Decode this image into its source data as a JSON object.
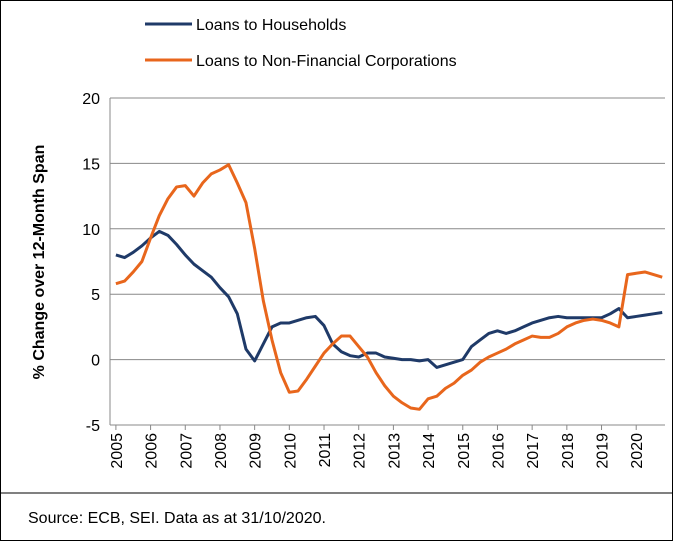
{
  "chart_data": {
    "type": "line",
    "y_label": "% Change over 12-Month Span",
    "source": "Source: ECB, SEI. Data as at 31/10/2020.",
    "x": [
      2005,
      2005.25,
      2005.5,
      2005.75,
      2006,
      2006.25,
      2006.5,
      2006.75,
      2007,
      2007.25,
      2007.5,
      2007.75,
      2008,
      2008.25,
      2008.5,
      2008.75,
      2009,
      2009.25,
      2009.5,
      2009.75,
      2010,
      2010.25,
      2010.5,
      2010.75,
      2011,
      2011.25,
      2011.5,
      2011.75,
      2012,
      2012.25,
      2012.5,
      2012.75,
      2013,
      2013.25,
      2013.5,
      2013.75,
      2014,
      2014.25,
      2014.5,
      2014.75,
      2015,
      2015.25,
      2015.5,
      2015.75,
      2016,
      2016.25,
      2016.5,
      2016.75,
      2017,
      2017.25,
      2017.5,
      2017.75,
      2018,
      2018.25,
      2018.5,
      2018.75,
      2019,
      2019.25,
      2019.5,
      2019.75,
      2020,
      2020.25,
      2020.5,
      2020.75
    ],
    "series": [
      {
        "name": "Loans to Households",
        "color": "#1f3a68",
        "values": [
          8.0,
          7.8,
          8.2,
          8.7,
          9.3,
          9.8,
          9.5,
          8.8,
          8.0,
          7.3,
          6.8,
          6.3,
          5.5,
          4.8,
          3.5,
          0.8,
          -0.1,
          1.2,
          2.5,
          2.8,
          2.8,
          3.0,
          3.2,
          3.3,
          2.6,
          1.2,
          0.6,
          0.3,
          0.2,
          0.5,
          0.5,
          0.2,
          0.1,
          0.0,
          0.0,
          -0.1,
          0.0,
          -0.6,
          -0.4,
          -0.2,
          0.0,
          1.0,
          1.5,
          2.0,
          2.2,
          2.0,
          2.2,
          2.5,
          2.8,
          3.0,
          3.2,
          3.3,
          3.2,
          3.2,
          3.2,
          3.2,
          3.2,
          3.5,
          3.9,
          3.2,
          3.3,
          3.4,
          3.5,
          3.6
        ]
      },
      {
        "name": "Loans to Non-Financial Corporations",
        "color": "#e8661c",
        "values": [
          5.8,
          6.0,
          6.7,
          7.5,
          9.3,
          11.0,
          12.3,
          13.2,
          13.3,
          12.5,
          13.5,
          14.2,
          14.5,
          14.9,
          13.5,
          12.0,
          8.5,
          4.5,
          1.5,
          -1.0,
          -2.5,
          -2.4,
          -1.5,
          -0.5,
          0.5,
          1.2,
          1.8,
          1.8,
          1.0,
          0.2,
          -1.0,
          -2.0,
          -2.8,
          -3.3,
          -3.7,
          -3.8,
          -3.0,
          -2.8,
          -2.2,
          -1.8,
          -1.2,
          -0.8,
          -0.2,
          0.2,
          0.5,
          0.8,
          1.2,
          1.5,
          1.8,
          1.7,
          1.7,
          2.0,
          2.5,
          2.8,
          3.0,
          3.1,
          3.0,
          2.8,
          2.5,
          6.5,
          6.6,
          6.7,
          6.5,
          6.3
        ]
      }
    ],
    "xlim": [
      2004.83,
      2020.83
    ],
    "xticks": [
      2005,
      2006,
      2007,
      2008,
      2009,
      2010,
      2011,
      2012,
      2013,
      2014,
      2015,
      2016,
      2017,
      2018,
      2019,
      2020
    ],
    "ylim": [
      -5,
      20
    ],
    "yticks": [
      -5,
      0,
      5,
      10,
      15,
      20
    ],
    "grid": true
  }
}
